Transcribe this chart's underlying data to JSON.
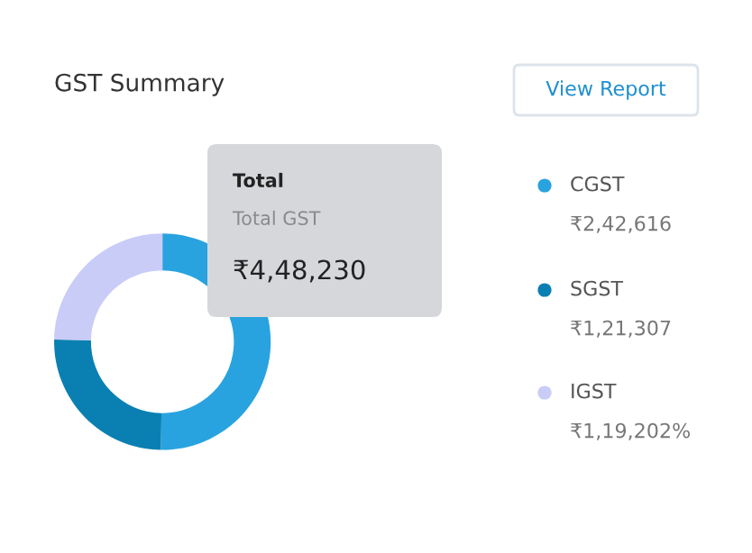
{
  "chart_data": {
    "type": "donut",
    "title": "GST Summary",
    "categories": [
      "CGST",
      "SGST",
      "IGST"
    ],
    "values": [
      242616,
      121307,
      119202
    ],
    "colors": [
      "#29a3df",
      "#0a80b2",
      "#c8ccf7"
    ],
    "value_labels": [
      "₹2,42,616",
      "₹1,21,307",
      "₹1,19,202%"
    ],
    "legend": "right",
    "annotations": [
      "View Report",
      "Total",
      "Total GST",
      "₹4,48,230"
    ]
  }
}
